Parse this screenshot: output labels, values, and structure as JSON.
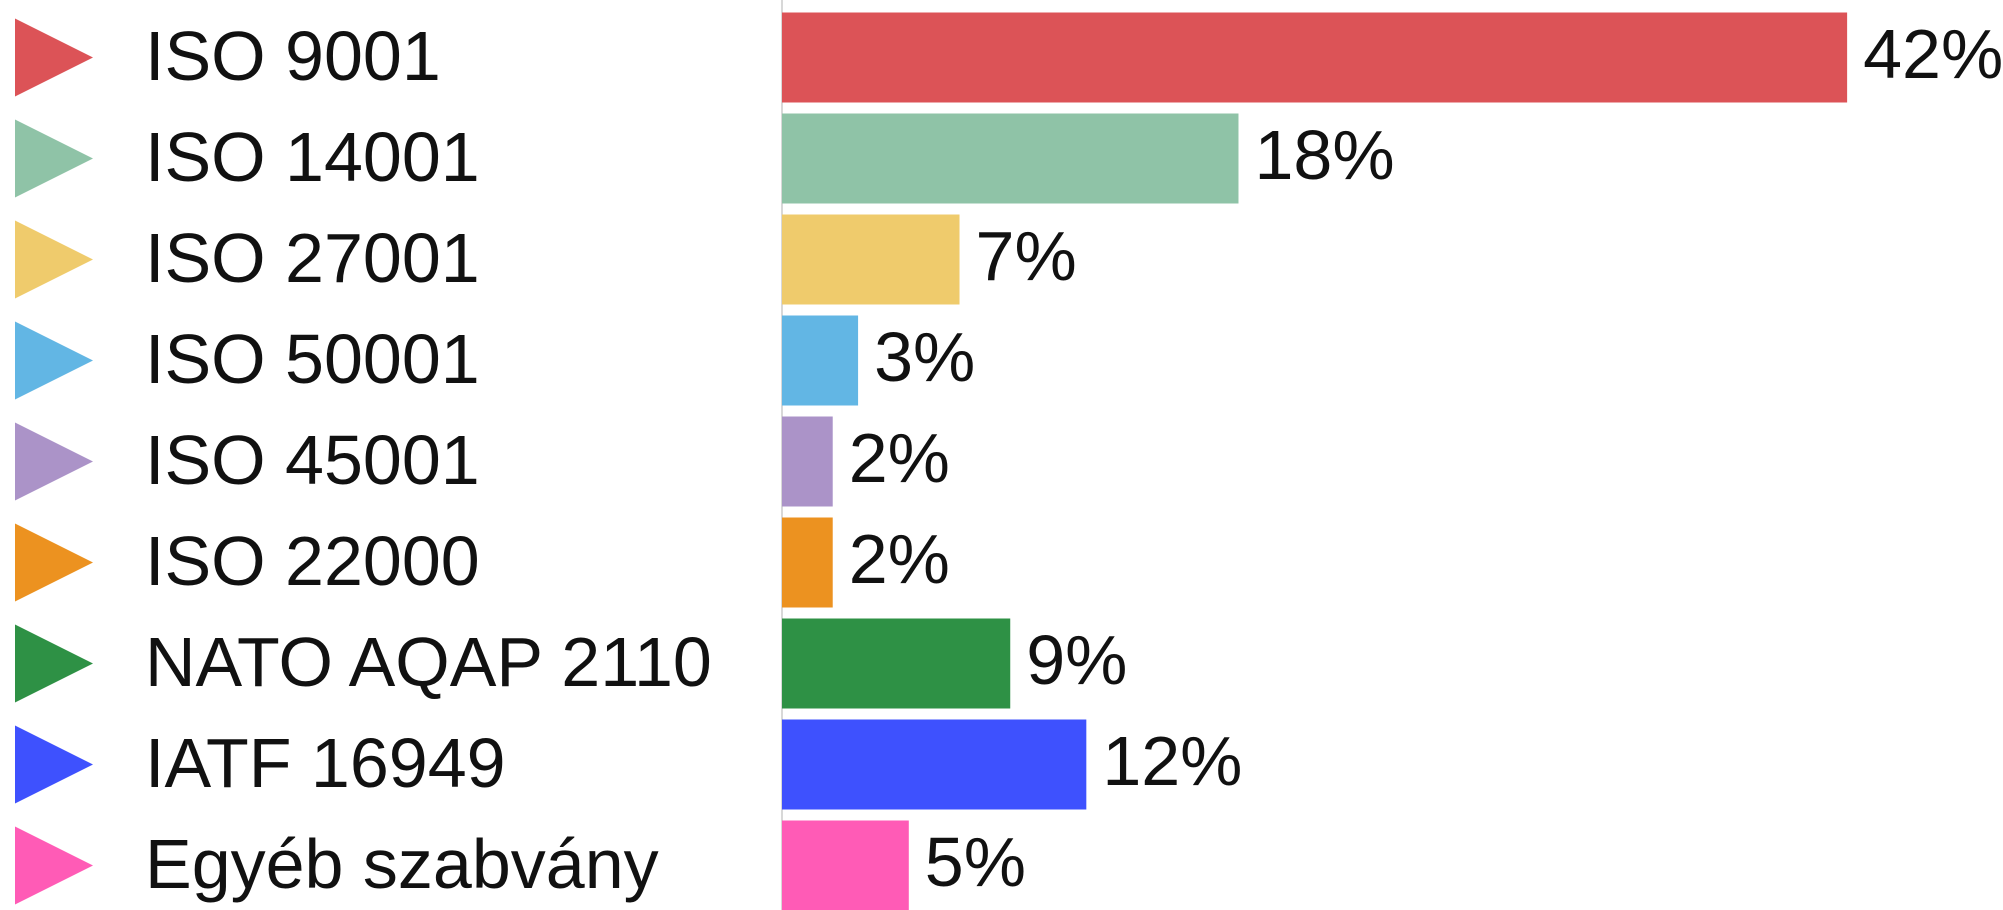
{
  "chart_data": {
    "type": "bar",
    "orientation": "horizontal",
    "categories": [
      "ISO 9001",
      "ISO 14001",
      "ISO 27001",
      "ISO 50001",
      "ISO 45001",
      "ISO 22000",
      "NATO AQAP 2110",
      "IATF 16949",
      "Egyéb szabvány"
    ],
    "values": [
      42,
      18,
      7,
      3,
      2,
      2,
      9,
      12,
      5
    ],
    "value_labels": [
      "42%",
      "18%",
      "7%",
      "3%",
      "2%",
      "2%",
      "9%",
      "12%",
      "5%"
    ],
    "colors": [
      "#dc5357",
      "#8fc3a7",
      "#efcb6c",
      "#62b6e4",
      "#ab93c8",
      "#ec9220",
      "#2e9145",
      "#3e51fe",
      "#ff5bb6"
    ]
  }
}
